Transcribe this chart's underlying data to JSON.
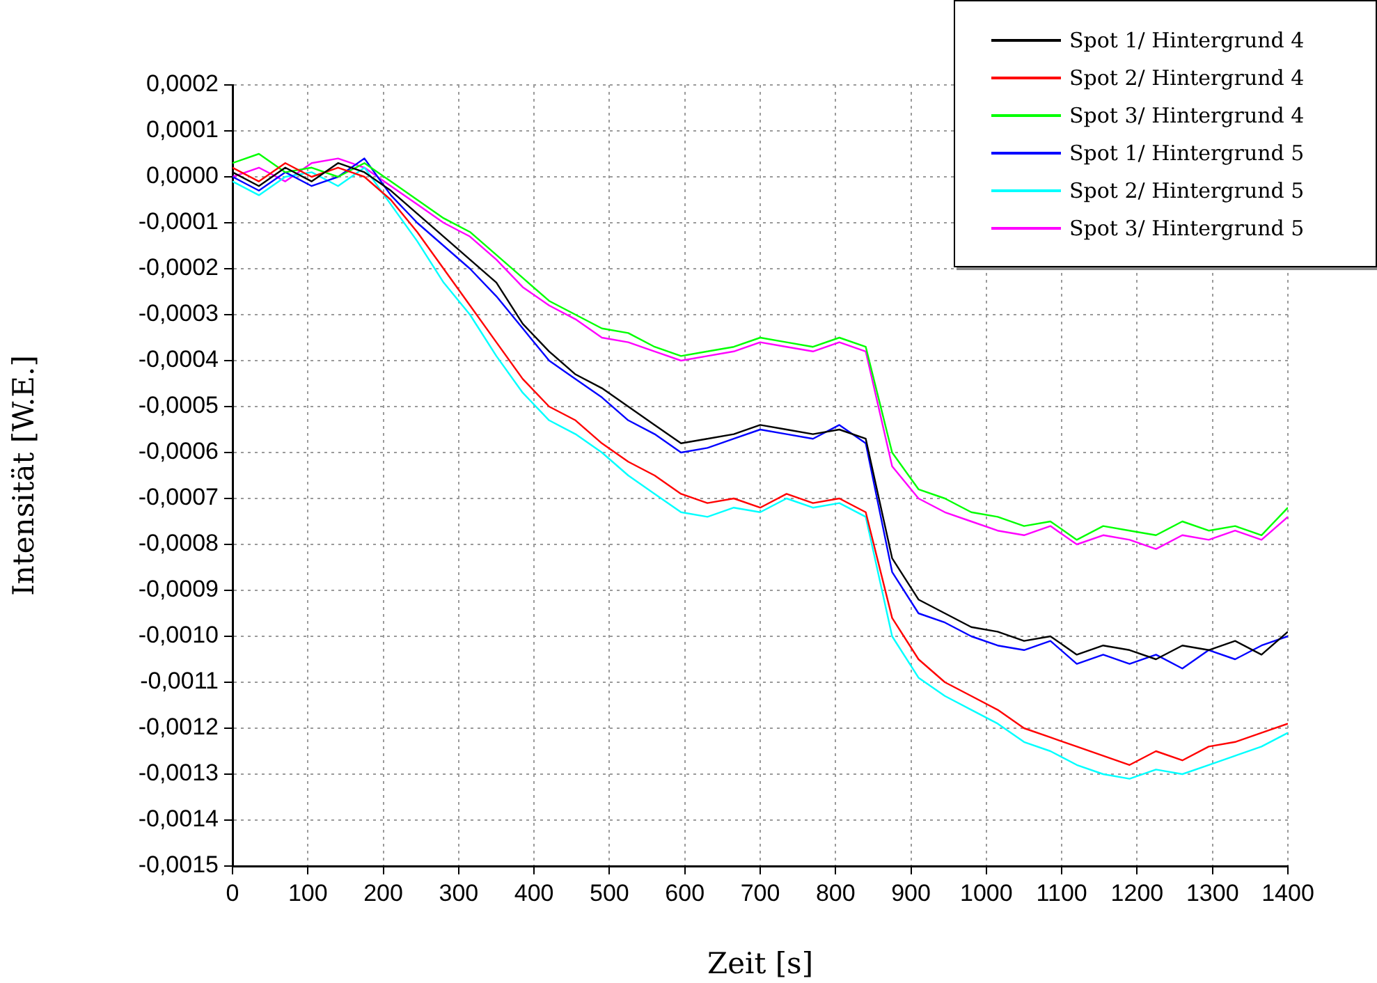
{
  "chart_data": {
    "type": "line",
    "xlabel": "Zeit [s]",
    "ylabel": "Intensität [W.E.]",
    "x": [
      0,
      35,
      70,
      105,
      140,
      175,
      210,
      245,
      280,
      315,
      350,
      385,
      420,
      455,
      490,
      525,
      560,
      595,
      630,
      665,
      700,
      735,
      770,
      805,
      840,
      875,
      910,
      945,
      980,
      1015,
      1050,
      1085,
      1120,
      1155,
      1190,
      1225,
      1260,
      1295,
      1330,
      1365,
      1400
    ],
    "series": [
      {
        "name": "Spot 1/ Hintergrund 4",
        "color": "#000000",
        "values": [
          1e-05,
          -2e-05,
          2e-05,
          -1e-05,
          3e-05,
          1e-05,
          -3e-05,
          -8e-05,
          -0.00013,
          -0.00018,
          -0.00023,
          -0.00032,
          -0.00038,
          -0.00043,
          -0.00046,
          -0.0005,
          -0.00054,
          -0.00058,
          -0.00057,
          -0.00056,
          -0.00054,
          -0.00055,
          -0.00056,
          -0.00055,
          -0.00057,
          -0.00083,
          -0.00092,
          -0.00095,
          -0.00098,
          -0.00099,
          -0.00101,
          -0.001,
          -0.00104,
          -0.00102,
          -0.00103,
          -0.00105,
          -0.00102,
          -0.00103,
          -0.00101,
          -0.00104,
          -0.00099
        ]
      },
      {
        "name": "Spot 2/ Hintergrund 4",
        "color": "#ff0000",
        "values": [
          2e-05,
          -1e-05,
          3e-05,
          0,
          2e-05,
          0,
          -5e-05,
          -0.00012,
          -0.0002,
          -0.00028,
          -0.00036,
          -0.00044,
          -0.0005,
          -0.00053,
          -0.00058,
          -0.00062,
          -0.00065,
          -0.00069,
          -0.00071,
          -0.0007,
          -0.00072,
          -0.00069,
          -0.00071,
          -0.0007,
          -0.00073,
          -0.00096,
          -0.00105,
          -0.0011,
          -0.00113,
          -0.00116,
          -0.0012,
          -0.00122,
          -0.00124,
          -0.00126,
          -0.00128,
          -0.00125,
          -0.00127,
          -0.00124,
          -0.00123,
          -0.00121,
          -0.00119
        ]
      },
      {
        "name": "Spot 3/ Hintergrund 4",
        "color": "#00ff00",
        "values": [
          3e-05,
          5e-05,
          1e-05,
          2e-05,
          0,
          3e-05,
          -1e-05,
          -5e-05,
          -9e-05,
          -0.00012,
          -0.00017,
          -0.00022,
          -0.00027,
          -0.0003,
          -0.00033,
          -0.00034,
          -0.00037,
          -0.00039,
          -0.00038,
          -0.00037,
          -0.00035,
          -0.00036,
          -0.00037,
          -0.00035,
          -0.00037,
          -0.0006,
          -0.00068,
          -0.0007,
          -0.00073,
          -0.00074,
          -0.00076,
          -0.00075,
          -0.00079,
          -0.00076,
          -0.00077,
          -0.00078,
          -0.00075,
          -0.00077,
          -0.00076,
          -0.00078,
          -0.00072
        ]
      },
      {
        "name": "Spot 1/ Hintergrund 5",
        "color": "#0000ff",
        "values": [
          0,
          -3e-05,
          1e-05,
          -2e-05,
          0,
          4e-05,
          -4e-05,
          -0.0001,
          -0.00015,
          -0.0002,
          -0.00026,
          -0.00033,
          -0.0004,
          -0.00044,
          -0.00048,
          -0.00053,
          -0.00056,
          -0.0006,
          -0.00059,
          -0.00057,
          -0.00055,
          -0.00056,
          -0.00057,
          -0.00054,
          -0.00058,
          -0.00086,
          -0.00095,
          -0.00097,
          -0.001,
          -0.00102,
          -0.00103,
          -0.00101,
          -0.00106,
          -0.00104,
          -0.00106,
          -0.00104,
          -0.00107,
          -0.00103,
          -0.00105,
          -0.00102,
          -0.001
        ]
      },
      {
        "name": "Spot 2/ Hintergrund 5",
        "color": "#00ffff",
        "values": [
          -1e-05,
          -4e-05,
          0,
          1e-05,
          -2e-05,
          2e-05,
          -6e-05,
          -0.00014,
          -0.00023,
          -0.0003,
          -0.00039,
          -0.00047,
          -0.00053,
          -0.00056,
          -0.0006,
          -0.00065,
          -0.00069,
          -0.00073,
          -0.00074,
          -0.00072,
          -0.00073,
          -0.0007,
          -0.00072,
          -0.00071,
          -0.00074,
          -0.001,
          -0.00109,
          -0.00113,
          -0.00116,
          -0.00119,
          -0.00123,
          -0.00125,
          -0.00128,
          -0.0013,
          -0.00131,
          -0.00129,
          -0.0013,
          -0.00128,
          -0.00126,
          -0.00124,
          -0.00121
        ]
      },
      {
        "name": "Spot 3/ Hintergrund 5",
        "color": "#ff00ff",
        "values": [
          0,
          2e-05,
          -1e-05,
          3e-05,
          4e-05,
          2e-05,
          -2e-05,
          -6e-05,
          -0.0001,
          -0.00013,
          -0.00018,
          -0.00024,
          -0.00028,
          -0.00031,
          -0.00035,
          -0.00036,
          -0.00038,
          -0.0004,
          -0.00039,
          -0.00038,
          -0.00036,
          -0.00037,
          -0.00038,
          -0.00036,
          -0.00038,
          -0.00063,
          -0.0007,
          -0.00073,
          -0.00075,
          -0.00077,
          -0.00078,
          -0.00076,
          -0.0008,
          -0.00078,
          -0.00079,
          -0.00081,
          -0.00078,
          -0.00079,
          -0.00077,
          -0.00079,
          -0.00074
        ]
      }
    ],
    "xlim": [
      0,
      1400
    ],
    "xticks": [
      0,
      100,
      200,
      300,
      400,
      500,
      600,
      700,
      800,
      900,
      1000,
      1100,
      1200,
      1300,
      1400
    ],
    "ylim": [
      -0.0015,
      0.0002
    ],
    "yticks": [
      {
        "value": 0.0002,
        "label": "0,0002"
      },
      {
        "value": 0.0001,
        "label": "0,0001"
      },
      {
        "value": 0,
        "label": "0,0000"
      },
      {
        "value": -0.0001,
        "label": "-0,0001"
      },
      {
        "value": -0.0002,
        "label": "-0,0002"
      },
      {
        "value": -0.0003,
        "label": "-0,0003"
      },
      {
        "value": -0.0004,
        "label": "-0,0004"
      },
      {
        "value": -0.0005,
        "label": "-0,0005"
      },
      {
        "value": -0.0006,
        "label": "-0,0006"
      },
      {
        "value": -0.0007,
        "label": "-0,0007"
      },
      {
        "value": -0.0008,
        "label": "-0,0008"
      },
      {
        "value": -0.0009,
        "label": "-0,0009"
      },
      {
        "value": -0.001,
        "label": "-0,0010"
      },
      {
        "value": -0.0011,
        "label": "-0,0011"
      },
      {
        "value": -0.0012,
        "label": "-0,0012"
      },
      {
        "value": -0.0013,
        "label": "-0,0013"
      },
      {
        "value": -0.0014,
        "label": "-0,0014"
      },
      {
        "value": -0.0015,
        "label": "-0,0015"
      }
    ],
    "grid": true,
    "legend": "top right"
  }
}
